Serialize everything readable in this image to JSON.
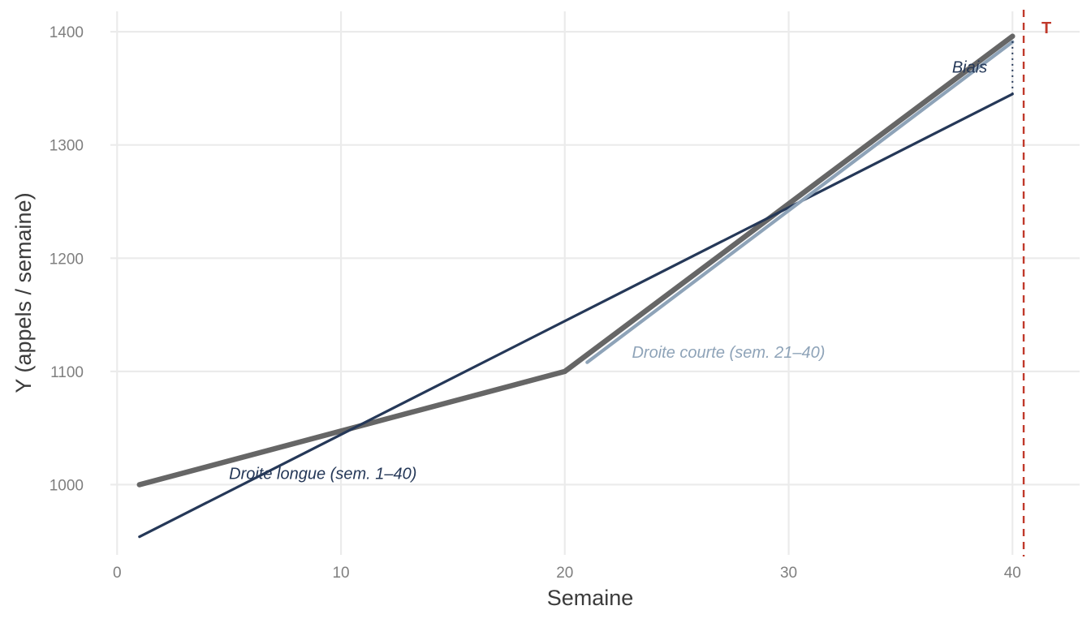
{
  "chart_data": {
    "type": "line",
    "title": "",
    "xlabel": "Semaine",
    "ylabel": "Y (appels / semaine)",
    "xlim": [
      -0.3,
      43.0
    ],
    "ylim": [
      938,
      1418
    ],
    "x_ticks": [
      0,
      10,
      20,
      30,
      40
    ],
    "y_ticks": [
      1000,
      1100,
      1200,
      1300,
      1400
    ],
    "grid": true,
    "legend": "none",
    "series": [
      {
        "key": "observed",
        "color": "#666666",
        "points": [
          [
            1,
            1000
          ],
          [
            20,
            1100
          ],
          [
            40,
            1396
          ]
        ]
      },
      {
        "key": "long_fit",
        "color": "#253858",
        "points": [
          [
            1,
            954
          ],
          [
            40,
            1345
          ]
        ]
      },
      {
        "key": "short_fit",
        "color": "#8EA3B8",
        "points": [
          [
            21,
            1108
          ],
          [
            40,
            1391
          ]
        ]
      }
    ],
    "vlines": [
      {
        "x": 40.5,
        "color": "#c0392b",
        "style": "dashed",
        "label": "T"
      }
    ],
    "annotations": [
      {
        "key": "long",
        "text": "Droite longue (sem. 1–40)",
        "x": 5,
        "y": 1010,
        "color": "#253858"
      },
      {
        "key": "short",
        "text": "Droite courte (sem. 21–40)",
        "x": 23,
        "y": 1117,
        "color": "#8EA3B8"
      },
      {
        "key": "bias",
        "text": "Biais",
        "x": 37.3,
        "y": 1369,
        "color": "#253858"
      }
    ],
    "bias_segment": {
      "x": 40,
      "y_from": 1345,
      "y_to": 1392,
      "color": "#253858"
    }
  }
}
